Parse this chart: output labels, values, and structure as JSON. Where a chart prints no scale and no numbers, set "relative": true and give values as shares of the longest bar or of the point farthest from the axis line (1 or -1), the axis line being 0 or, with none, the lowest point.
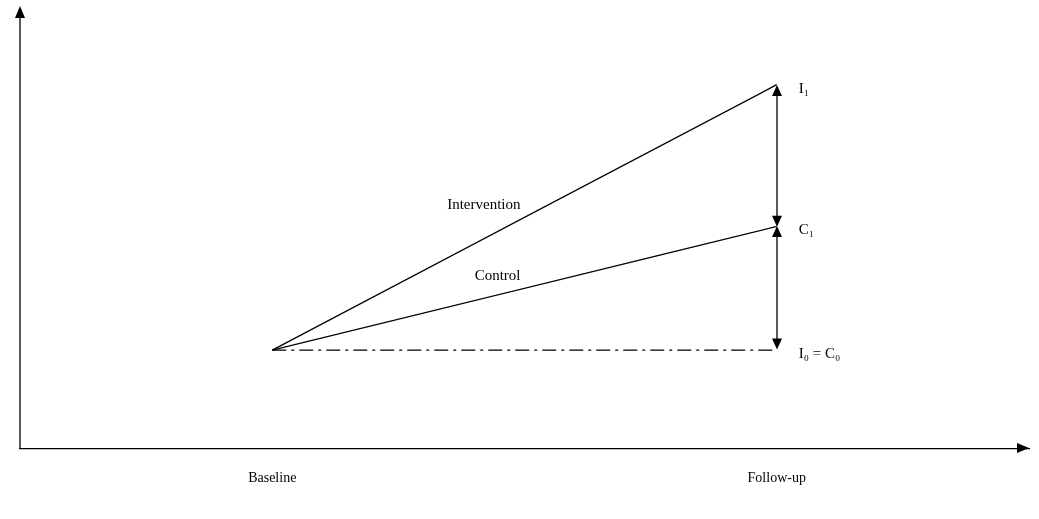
{
  "chart_data": {
    "type": "line",
    "relative": true,
    "categories": [
      "Baseline",
      "Follow-up"
    ],
    "series": [
      {
        "name": "Intervention",
        "color": "#000000",
        "values": [
          0.27,
          1
        ]
      },
      {
        "name": "Control",
        "color": "#000000",
        "values": [
          0.27,
          0.61
        ]
      },
      {
        "color": "#000000",
        "values": [
          0.27,
          0.27
        ],
        "line_style": "dashed"
      }
    ],
    "annotations": [
      {
        "text": "I₁",
        "x": "Follow-up",
        "y": 1
      },
      {
        "text": "C₁",
        "x": "Follow-up",
        "y": 0.61
      },
      {
        "text": "I₀ = C₀",
        "x": "Follow-up",
        "y": 0.27
      }
    ],
    "legend": false,
    "grid": false,
    "marker": "none",
    "tick_labels": "x"
  }
}
